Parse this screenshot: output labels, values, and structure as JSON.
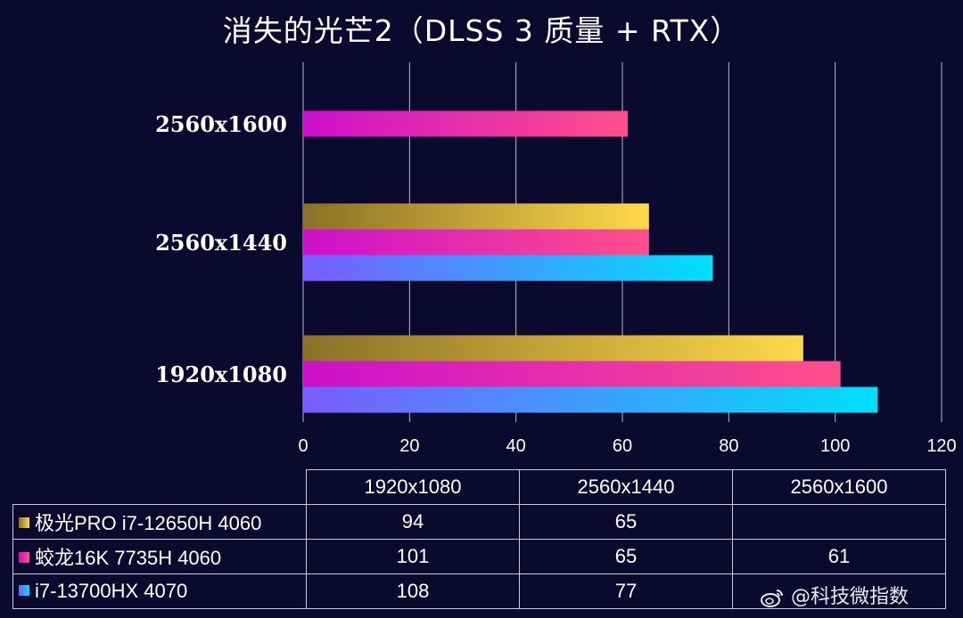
{
  "chart_data": {
    "type": "bar",
    "orientation": "horizontal",
    "title": "消失的光芒2（DLSS 3 质量 + RTX）",
    "categories": [
      "1920x1080",
      "2560x1440",
      "2560x1600"
    ],
    "series": [
      {
        "name": "极光PRO i7-12650H 4060",
        "values": [
          94,
          65,
          null
        ],
        "color_start": "#8a7028",
        "color_end": "#ffd84a"
      },
      {
        "name": "蛟龙16K 7735H 4060",
        "values": [
          101,
          65,
          61
        ],
        "color_start": "#cc10cc",
        "color_end": "#ff4f8a"
      },
      {
        "name": "i7-13700HX 4070",
        "values": [
          108,
          77,
          null
        ],
        "color_start": "#7a5cff",
        "color_end": "#00dfff"
      }
    ],
    "xlim": [
      0,
      120
    ],
    "x_ticks": [
      0,
      20,
      40,
      60,
      80,
      100,
      120
    ],
    "x_tick_labels": [
      "0",
      "20",
      "40",
      "60",
      "80",
      "100",
      "120"
    ],
    "grid": "vertical",
    "table": {
      "headers": [
        "1920x1080",
        "2560x1440",
        "2560x1600"
      ],
      "rows": [
        {
          "label": "极光PRO i7-12650H 4060",
          "cells": [
            "94",
            "65",
            ""
          ]
        },
        {
          "label": "蛟龙16K 7735H 4060",
          "cells": [
            "101",
            "65",
            "61"
          ]
        },
        {
          "label": "i7-13700HX 4070",
          "cells": [
            "108",
            "77",
            ""
          ]
        }
      ]
    }
  },
  "watermark": {
    "text": "@科技微指数",
    "icon": "weibo-icon"
  }
}
